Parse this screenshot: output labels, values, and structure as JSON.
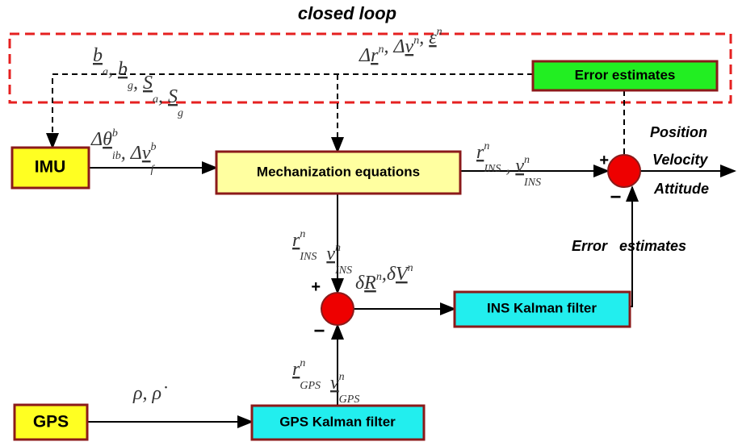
{
  "title": "closed loop",
  "blocks": {
    "error_box": "Error estimates",
    "imu": "IMU",
    "mech": "Mechanization equations",
    "ins_kf": "INS Kalman filter",
    "gps": "GPS",
    "gps_kf": "GPS Kalman filter"
  },
  "outputs": [
    "Position",
    "Velocity",
    "Attitude"
  ],
  "side_label": "Error   estimates",
  "signs": {
    "sum1_plus": "+",
    "sum1_minus": "−",
    "sum2_plus": "+",
    "sum2_minus": "−"
  },
  "math": {
    "bias": [
      {
        "b": "b",
        "sub": "a",
        "u": true
      },
      {
        "b": ", "
      },
      {
        "b": "b",
        "sub": "g",
        "u": true
      },
      {
        "b": ", "
      },
      {
        "b": "S",
        "sub": "a",
        "u": true
      },
      {
        "b": ", "
      },
      {
        "b": "S",
        "sub": "g",
        "u": true
      }
    ],
    "err": [
      {
        "b": "Δ"
      },
      {
        "b": "r",
        "sup": "n",
        "u": true
      },
      {
        "b": ", Δ"
      },
      {
        "b": "v",
        "sup": "n",
        "u": true
      },
      {
        "b": ", "
      },
      {
        "b": "ε",
        "sup": "n",
        "u": true
      }
    ],
    "imu_out": [
      {
        "b": "Δ"
      },
      {
        "b": "θ",
        "sup": "b",
        "sub": "ib",
        "u": true
      },
      {
        "b": ", Δ"
      },
      {
        "b": "v",
        "sup": "b",
        "sub": "f",
        "u": true
      }
    ],
    "ins_out": [
      {
        "b": "r",
        "sup": "n",
        "sub": "INS",
        "u": true
      },
      {
        "b": " , "
      },
      {
        "b": "v",
        "sup": "n",
        "sub": "INS",
        "u": true
      }
    ],
    "ins_down": [
      {
        "b": "r",
        "sup": "n",
        "sub": "INS",
        "u": true
      },
      {
        "b": "  "
      },
      {
        "b": "v",
        "sup": "n",
        "sub": "INS",
        "u": true
      }
    ],
    "delta": [
      {
        "b": "δ"
      },
      {
        "b": "R",
        "sup": "n",
        "u": true
      },
      {
        "b": ",δ"
      },
      {
        "b": "V",
        "sup": "n",
        "u": true
      }
    ],
    "gps_out": [
      {
        "b": "r",
        "sup": "n",
        "sub": "GPS",
        "u": true
      },
      {
        "b": "  "
      },
      {
        "b": "v",
        "sup": "n",
        "sub": "GPS",
        "u": true
      }
    ],
    "gps_in": [
      {
        "b": "ρ"
      },
      {
        "b": ", "
      },
      {
        "b": "ρ̇"
      }
    ]
  }
}
